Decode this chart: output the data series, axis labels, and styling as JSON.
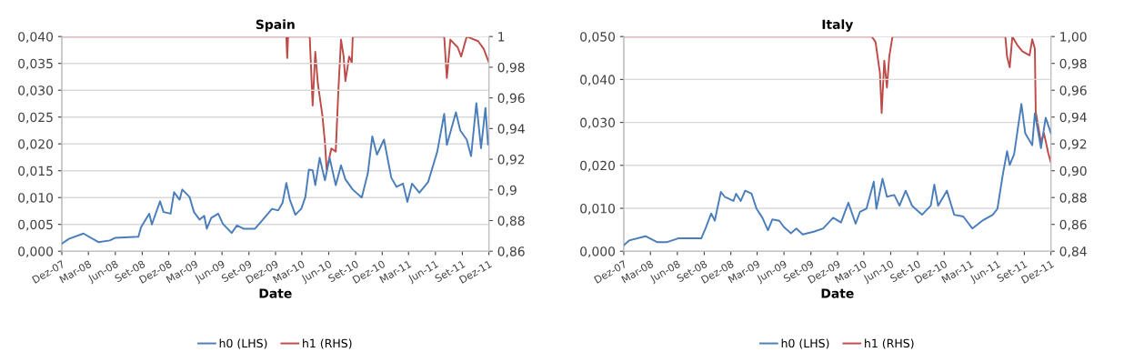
{
  "chart_data": [
    {
      "type": "line",
      "title": "Spain",
      "xlabel": "Date",
      "grid": "y",
      "legend": "bottom",
      "xlim": [
        "2007-12",
        "2011-12"
      ],
      "xticks": [
        {
          "value": "2007-12",
          "label": "Dez-07"
        },
        {
          "value": "2008-03",
          "label": "Mar-08"
        },
        {
          "value": "2008-06",
          "label": "Jun-08"
        },
        {
          "value": "2008-09",
          "label": "Set-08"
        },
        {
          "value": "2008-12",
          "label": "Dez-08"
        },
        {
          "value": "2009-03",
          "label": "Mar-09"
        },
        {
          "value": "2009-06",
          "label": "Jun-09"
        },
        {
          "value": "2009-09",
          "label": "Set-09"
        },
        {
          "value": "2009-12",
          "label": "Dez-09"
        },
        {
          "value": "2010-03",
          "label": "Mar-10"
        },
        {
          "value": "2010-06",
          "label": "Jun-10"
        },
        {
          "value": "2010-09",
          "label": "Set-10"
        },
        {
          "value": "2010-12",
          "label": "Dez-10"
        },
        {
          "value": "2011-03",
          "label": "Mar-11"
        },
        {
          "value": "2011-06",
          "label": "Jun-11"
        },
        {
          "value": "2011-09",
          "label": "Set-11"
        },
        {
          "value": "2011-12",
          "label": "Dez-11"
        }
      ],
      "ylim": [
        0,
        0.04
      ],
      "yticks": [
        {
          "value": 0,
          "label": "0,000"
        },
        {
          "value": 0.005,
          "label": "0,005"
        },
        {
          "value": 0.01,
          "label": "0,010"
        },
        {
          "value": 0.015,
          "label": "0,015"
        },
        {
          "value": 0.02,
          "label": "0,020"
        },
        {
          "value": 0.025,
          "label": "0,025"
        },
        {
          "value": 0.03,
          "label": "0,030"
        },
        {
          "value": 0.035,
          "label": "0,035"
        },
        {
          "value": 0.04,
          "label": "0,040"
        }
      ],
      "y2lim": [
        0.86,
        1
      ],
      "y2ticks": [
        {
          "value": 0.86,
          "label": "0,86"
        },
        {
          "value": 0.88,
          "label": "0,88"
        },
        {
          "value": 0.9,
          "label": "0,9"
        },
        {
          "value": 0.92,
          "label": "0,92"
        },
        {
          "value": 0.94,
          "label": "0,94"
        },
        {
          "value": 0.96,
          "label": "0,96"
        },
        {
          "value": 0.98,
          "label": "0,98"
        },
        {
          "value": 1,
          "label": "1"
        }
      ],
      "series": [
        {
          "name": "h0 (LHS)",
          "color": "#4a7ebb",
          "x": [
            "2007-12-01",
            "2007-12-25",
            "2008-02-13",
            "2008-04-04",
            "2008-05-13",
            "2008-06-01",
            "2008-08-19",
            "2008-08-28",
            "2008-09-25",
            "2008-10-04",
            "2008-11-01",
            "2008-11-13",
            "2008-12-07",
            "2008-12-19",
            "2009-01-07",
            "2009-01-16",
            "2009-02-10",
            "2009-02-25",
            "2009-03-16",
            "2009-04-01",
            "2009-04-10",
            "2009-04-25",
            "2009-05-19",
            "2009-06-04",
            "2009-07-04",
            "2009-07-22",
            "2009-08-13",
            "2009-09-22",
            "2009-10-19",
            "2009-11-19",
            "2009-12-10",
            "2009-12-25",
            "2010-01-07",
            "2010-01-19",
            "2010-02-07",
            "2010-02-27",
            "2010-03-13",
            "2010-03-25",
            "2010-04-07",
            "2010-04-16",
            "2010-05-01",
            "2010-05-19",
            "2010-06-04",
            "2010-06-25",
            "2010-07-13",
            "2010-07-28",
            "2010-08-22",
            "2010-09-22",
            "2010-10-13",
            "2010-10-28",
            "2010-11-13",
            "2010-12-07",
            "2011-01-01",
            "2011-01-19",
            "2011-02-10",
            "2011-02-25",
            "2011-03-13",
            "2011-04-07",
            "2011-05-07",
            "2011-06-07",
            "2011-07-01",
            "2011-07-10",
            "2011-08-10",
            "2011-08-25",
            "2011-09-16",
            "2011-10-01",
            "2011-10-19",
            "2011-11-04",
            "2011-11-19",
            "2011-11-28"
          ],
          "values": [
            0.0014,
            0.0023,
            0.0033,
            0.0017,
            0.002,
            0.0025,
            0.0027,
            0.0045,
            0.007,
            0.005,
            0.0093,
            0.0073,
            0.007,
            0.011,
            0.0096,
            0.0115,
            0.0101,
            0.0073,
            0.0059,
            0.0066,
            0.0042,
            0.0062,
            0.007,
            0.0051,
            0.0034,
            0.0048,
            0.0042,
            0.0042,
            0.0059,
            0.0079,
            0.0076,
            0.009,
            0.0127,
            0.0096,
            0.0068,
            0.0079,
            0.0101,
            0.0152,
            0.0151,
            0.0123,
            0.0174,
            0.0132,
            0.0174,
            0.0123,
            0.016,
            0.0134,
            0.0115,
            0.01,
            0.0146,
            0.0214,
            0.018,
            0.0208,
            0.0137,
            0.012,
            0.0126,
            0.0092,
            0.0126,
            0.0109,
            0.0129,
            0.0185,
            0.0256,
            0.0198,
            0.0259,
            0.0225,
            0.0208,
            0.0177,
            0.0276,
            0.0192,
            0.0267,
            0.0199
          ]
        },
        {
          "name": "h1 (RHS)",
          "color": "#be4b48",
          "axis": "y2",
          "x": [
            "2007-12-01",
            "2010-01-07",
            "2010-01-10",
            "2010-01-13",
            "2010-03-28",
            "2010-04-07",
            "2010-04-16",
            "2010-04-25",
            "2010-05-10",
            "2010-05-19",
            "2010-05-25",
            "2010-06-10",
            "2010-06-25",
            "2010-07-04",
            "2010-07-13",
            "2010-07-22",
            "2010-07-28",
            "2010-08-10",
            "2010-08-19",
            "2010-08-22",
            "2011-07-01",
            "2011-07-10",
            "2011-07-22",
            "2011-08-16",
            "2011-08-28",
            "2011-09-16",
            "2011-10-25",
            "2011-11-13",
            "2011-12-01"
          ],
          "values": [
            1,
            1,
            0.986,
            1,
            1,
            0.955,
            0.99,
            0.969,
            0.949,
            0.931,
            0.913,
            0.927,
            0.925,
            0.965,
            0.998,
            0.987,
            0.971,
            0.987,
            0.983,
            1,
            1,
            0.973,
            0.998,
            0.993,
            0.987,
            1,
            0.997,
            0.992,
            0.983
          ]
        }
      ]
    },
    {
      "type": "line",
      "title": "Italy",
      "xlabel": "Date",
      "grid": "y",
      "legend": "bottom",
      "xlim": [
        "2007-12",
        "2011-12"
      ],
      "xticks": [
        {
          "value": "2007-12",
          "label": "Dez-07"
        },
        {
          "value": "2008-03",
          "label": "Mar-08"
        },
        {
          "value": "2008-06",
          "label": "Jun-08"
        },
        {
          "value": "2008-09",
          "label": "Set-08"
        },
        {
          "value": "2008-12",
          "label": "Dez-08"
        },
        {
          "value": "2009-03",
          "label": "Mar-09"
        },
        {
          "value": "2009-06",
          "label": "Jun-09"
        },
        {
          "value": "2009-09",
          "label": "Set-09"
        },
        {
          "value": "2009-12",
          "label": "Dez-09"
        },
        {
          "value": "2010-03",
          "label": "Mar-10"
        },
        {
          "value": "2010-06",
          "label": "Jun-10"
        },
        {
          "value": "2010-09",
          "label": "Set-10"
        },
        {
          "value": "2010-12",
          "label": "Dez-10"
        },
        {
          "value": "2011-03",
          "label": "Mar-11"
        },
        {
          "value": "2011-06",
          "label": "Jun-11"
        },
        {
          "value": "2011-09",
          "label": "Set-11"
        },
        {
          "value": "2011-12",
          "label": "Dez-11"
        }
      ],
      "ylim": [
        0,
        0.05
      ],
      "yticks": [
        {
          "value": 0,
          "label": "0,000"
        },
        {
          "value": 0.01,
          "label": "0,010"
        },
        {
          "value": 0.02,
          "label": "0,020"
        },
        {
          "value": 0.03,
          "label": "0,030"
        },
        {
          "value": 0.04,
          "label": "0,040"
        },
        {
          "value": 0.05,
          "label": "0,050"
        }
      ],
      "y2lim": [
        0.84,
        1
      ],
      "y2ticks": [
        {
          "value": 0.84,
          "label": "0,84"
        },
        {
          "value": 0.86,
          "label": "0,86"
        },
        {
          "value": 0.88,
          "label": "0,88"
        },
        {
          "value": 0.9,
          "label": "0,90"
        },
        {
          "value": 0.92,
          "label": "0,92"
        },
        {
          "value": 0.94,
          "label": "0,94"
        },
        {
          "value": 0.96,
          "label": "0,96"
        },
        {
          "value": 0.98,
          "label": "0,98"
        },
        {
          "value": 1,
          "label": "1,00"
        }
      ],
      "series": [
        {
          "name": "h0 (LHS)",
          "color": "#4a7ebb",
          "x": [
            "2007-12-01",
            "2007-12-19",
            "2008-02-13",
            "2008-03-25",
            "2008-04-25",
            "2008-06-04",
            "2008-08-22",
            "2008-09-07",
            "2008-09-25",
            "2008-10-07",
            "2008-10-28",
            "2008-11-10",
            "2008-12-10",
            "2008-12-19",
            "2009-01-04",
            "2009-01-19",
            "2009-02-10",
            "2009-02-27",
            "2009-03-19",
            "2009-04-07",
            "2009-04-22",
            "2009-05-16",
            "2009-06-01",
            "2009-06-25",
            "2009-07-13",
            "2009-08-04",
            "2009-09-13",
            "2009-10-13",
            "2009-11-16",
            "2009-12-13",
            "2010-01-07",
            "2010-02-01",
            "2010-02-16",
            "2010-03-10",
            "2010-04-04",
            "2010-04-13",
            "2010-05-04",
            "2010-05-19",
            "2010-06-13",
            "2010-07-01",
            "2010-07-22",
            "2010-08-13",
            "2010-09-16",
            "2010-10-16",
            "2010-10-28",
            "2010-11-10",
            "2010-12-10",
            "2011-01-04",
            "2011-02-04",
            "2011-03-07",
            "2011-04-10",
            "2011-05-16",
            "2011-06-01",
            "2011-06-19",
            "2011-07-04",
            "2011-07-13",
            "2011-07-28",
            "2011-08-22",
            "2011-09-04",
            "2011-09-28",
            "2011-10-07",
            "2011-10-28",
            "2011-11-13",
            "2011-12-01"
          ],
          "values": [
            0.0014,
            0.0025,
            0.0035,
            0.0021,
            0.0021,
            0.003,
            0.003,
            0.0056,
            0.0088,
            0.0071,
            0.0138,
            0.0127,
            0.0117,
            0.0134,
            0.0117,
            0.0141,
            0.0134,
            0.0099,
            0.0078,
            0.0049,
            0.0074,
            0.0071,
            0.0056,
            0.0042,
            0.0053,
            0.0039,
            0.0046,
            0.0053,
            0.0078,
            0.0067,
            0.0113,
            0.0064,
            0.0092,
            0.0099,
            0.0162,
            0.0099,
            0.0169,
            0.0127,
            0.0131,
            0.0106,
            0.0141,
            0.0106,
            0.0085,
            0.0106,
            0.0155,
            0.0106,
            0.0141,
            0.0085,
            0.0081,
            0.0053,
            0.0071,
            0.0085,
            0.0099,
            0.0177,
            0.0233,
            0.0201,
            0.0226,
            0.0343,
            0.0275,
            0.0247,
            0.0321,
            0.024,
            0.0311,
            0.0275
          ]
        },
        {
          "name": "h1 (RHS)",
          "color": "#be4b48",
          "axis": "y2",
          "x": [
            "2007-12-01",
            "2010-03-28",
            "2010-04-10",
            "2010-04-25",
            "2010-05-01",
            "2010-05-10",
            "2010-05-19",
            "2010-05-27",
            "2010-06-07",
            "2011-06-28",
            "2011-07-04",
            "2011-07-13",
            "2011-07-22",
            "2011-08-07",
            "2011-08-25",
            "2011-09-19",
            "2011-09-28",
            "2011-10-07",
            "2011-10-10",
            "2011-10-28",
            "2011-11-07",
            "2011-11-22",
            "2011-12-01"
          ],
          "values": [
            1,
            1,
            0.996,
            0.973,
            0.943,
            0.982,
            0.962,
            0.985,
            1,
            1,
            0.985,
            0.977,
            1,
            0.994,
            0.989,
            0.986,
            0.998,
            0.991,
            0.944,
            0.921,
            0.928,
            0.913,
            0.906
          ]
        }
      ]
    }
  ]
}
